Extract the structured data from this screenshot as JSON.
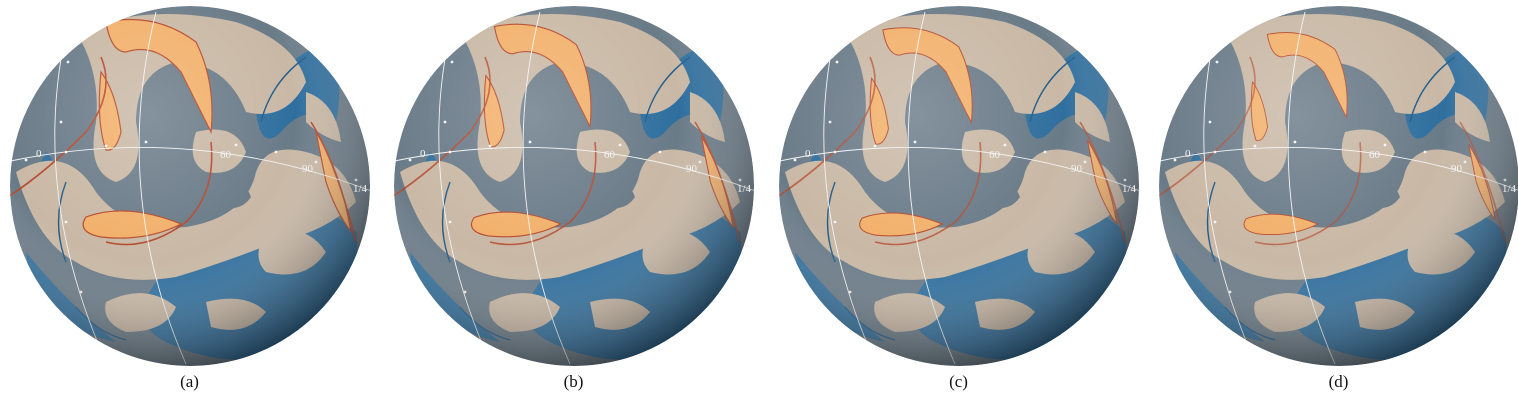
{
  "figure": {
    "panels": [
      {
        "id": "a",
        "caption": "(a)",
        "orange_level": 1.0
      },
      {
        "id": "b",
        "caption": "(b)",
        "orange_level": 0.8
      },
      {
        "id": "c",
        "caption": "(c)",
        "orange_level": 0.65
      },
      {
        "id": "d",
        "caption": "(d)",
        "orange_level": 0.45
      }
    ],
    "longitude_labels": [
      "0",
      "60",
      "90",
      "1/4"
    ],
    "colors": {
      "background_gray": "#6a7b88",
      "land_beige": "#c9b8a5",
      "ocean_blue": "#2f6f9e",
      "highlight_orange": "#f2b06a",
      "contour_red": "#b5492c",
      "grid_white": "#f4f4f4"
    }
  }
}
